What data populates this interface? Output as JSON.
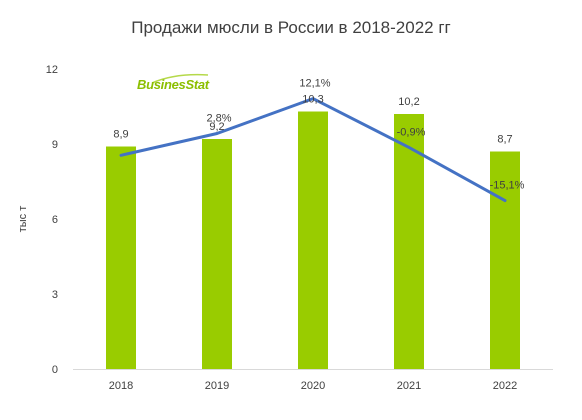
{
  "chart_data": {
    "type": "bar",
    "title": "Продажи мюсли в России в 2018-2022 гг",
    "ylabel": "тыс т",
    "xlabel": "",
    "categories": [
      "2018",
      "2019",
      "2020",
      "2021",
      "2022"
    ],
    "values": [
      8.9,
      9.2,
      10.3,
      10.2,
      8.7
    ],
    "value_labels": [
      "8,9",
      "9,2",
      "10,3",
      "10,2",
      "8,7"
    ],
    "ylim": [
      0,
      12
    ],
    "yticks": [
      0,
      3,
      6,
      9,
      12
    ],
    "grid": false,
    "bar_color": "#99cc00",
    "growth_line": {
      "color": "#4472c4",
      "values": [
        null,
        2.8,
        12.1,
        -0.9,
        -15.1
      ],
      "labels": [
        "",
        "2,8%",
        "12,1%",
        "-0,9%",
        "-15,1%"
      ],
      "ylim": [
        -60,
        20
      ]
    }
  },
  "brand": {
    "logo_text": "BusinesStat",
    "color": "#8cbf00"
  }
}
